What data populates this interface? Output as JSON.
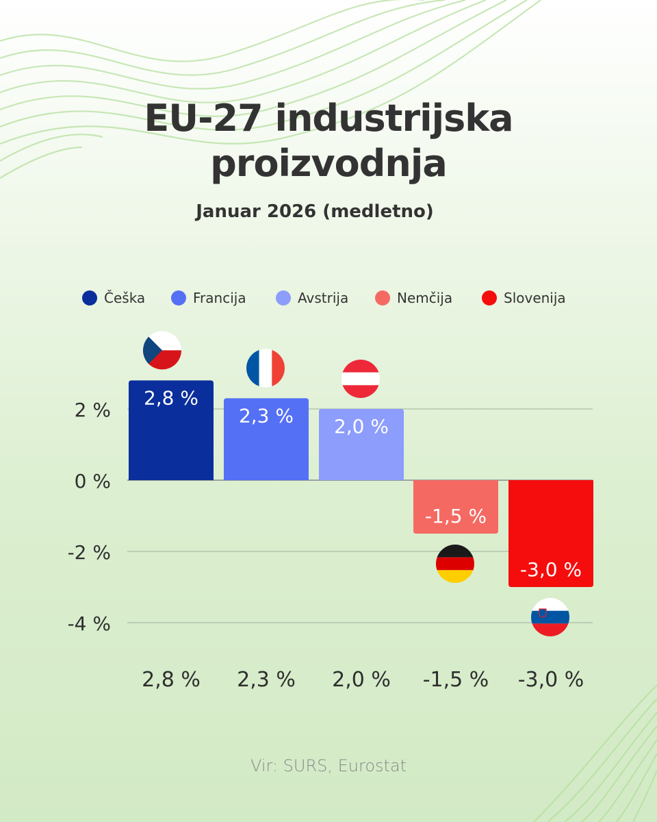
{
  "header": {
    "title_line1": "EU-27 industrijska",
    "title_line2": "proizvodnja",
    "subtitle": "Januar 2026 (medletno)"
  },
  "legend": [
    {
      "label": "Češka",
      "color": "#0a2e9c"
    },
    {
      "label": "Francija",
      "color": "#5470f5"
    },
    {
      "label": "Avstrija",
      "color": "#8c9dfb"
    },
    {
      "label": "Nemčija",
      "color": "#f46a63"
    },
    {
      "label": "Slovenija",
      "color": "#f50d0d"
    }
  ],
  "chart_data": {
    "type": "bar",
    "categories": [
      "Češka",
      "Francija",
      "Avstrija",
      "Nemčija",
      "Slovenija"
    ],
    "values": [
      2.8,
      2.3,
      2.0,
      -1.5,
      -3.0
    ],
    "value_labels": [
      "2,8 %",
      "2,3 %",
      "2,0 %",
      "-1,5 %",
      "-3,0 %"
    ],
    "bar_colors": [
      "#0a2e9c",
      "#5470f5",
      "#8c9dfb",
      "#f46a63",
      "#f50d0d"
    ],
    "flags": [
      "czech-flag",
      "france-flag",
      "austria-flag",
      "germany-flag",
      "slovenia-flag"
    ],
    "ylim": [
      -4,
      2
    ],
    "yticks": [
      2,
      0,
      -2,
      -4
    ],
    "ytick_labels": [
      "2 %",
      "0 %",
      "-2 %",
      "-4 %"
    ],
    "title": "EU-27 industrijska proizvodnja",
    "subtitle": "Januar 2026 (medletno)",
    "xlabel": "",
    "ylabel": "",
    "grid": true,
    "legend_position": "top"
  },
  "footer": {
    "source": "Vir: SURS, Eurostat"
  }
}
